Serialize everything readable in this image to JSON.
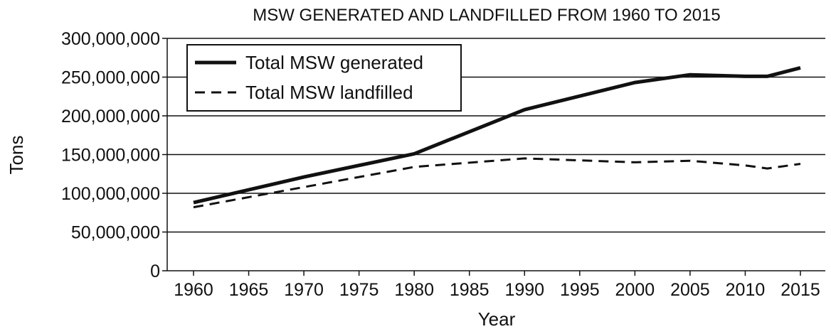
{
  "chart_data": {
    "type": "line",
    "title": "MSW GENERATED AND LANDFILLED FROM 1960 TO 2015",
    "xlabel": "Year",
    "ylabel": "Tons",
    "x": [
      1960,
      1970,
      1980,
      1990,
      2000,
      2005,
      2010,
      2012,
      2015
    ],
    "ylim": [
      0,
      300000000
    ],
    "xlim": [
      1960,
      2015
    ],
    "yticks": [
      0,
      50000000,
      100000000,
      150000000,
      200000000,
      250000000,
      300000000
    ],
    "ytick_labels": [
      "0",
      "50,000,000",
      "100,000,000",
      "150,000,000",
      "200,000,000",
      "250,000,000",
      "300,000,000"
    ],
    "xticks": [
      1960,
      1965,
      1970,
      1975,
      1980,
      1985,
      1990,
      1995,
      2000,
      2005,
      2010,
      2015
    ],
    "xtick_labels": [
      "1960",
      "1965",
      "1970",
      "1975",
      "1980",
      "1985",
      "1990",
      "1995",
      "2000",
      "2005",
      "2010",
      "2015"
    ],
    "grid": "horizontal",
    "legend_position": "top-left",
    "series": [
      {
        "name": "Total MSW generated",
        "style": "solid",
        "x": [
          1960,
          1970,
          1980,
          1990,
          2000,
          2005,
          2010,
          2012,
          2015
        ],
        "values": [
          88000000,
          121000000,
          151000000,
          208000000,
          243000000,
          253000000,
          251000000,
          251000000,
          262000000
        ]
      },
      {
        "name": "Total MSW landfilled",
        "style": "dashed",
        "x": [
          1960,
          1970,
          1980,
          1990,
          2000,
          2005,
          2010,
          2012,
          2015
        ],
        "values": [
          82000000,
          108000000,
          134000000,
          145000000,
          140000000,
          142000000,
          136000000,
          132000000,
          138000000
        ]
      }
    ],
    "colors": {
      "line": "#111111",
      "grid": "#111111",
      "axis": "#111111"
    }
  }
}
